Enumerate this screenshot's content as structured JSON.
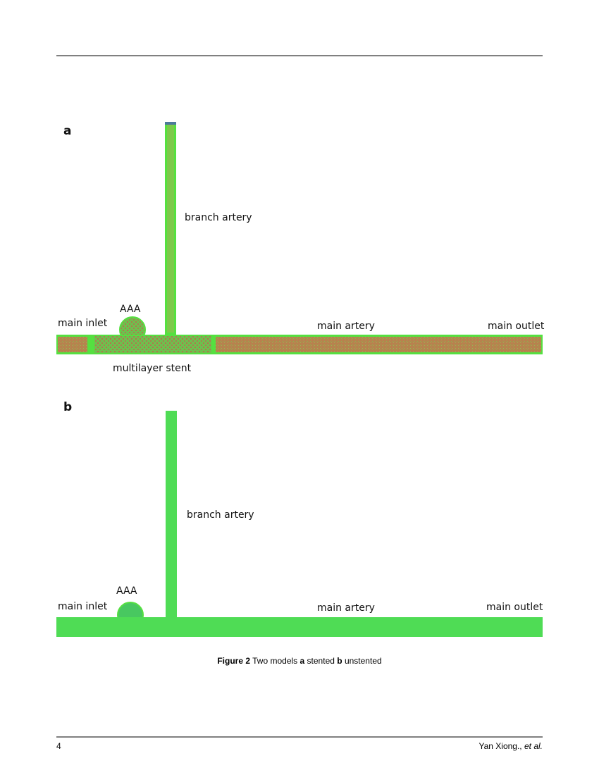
{
  "figure": {
    "panels": [
      {
        "label": "a",
        "annotations": {
          "branch": "branch artery",
          "aneurysm": "AAA",
          "inlet": "main inlet",
          "artery": "main artery",
          "outlet": "main outlet",
          "stent": "multilayer stent"
        }
      },
      {
        "label": "b",
        "annotations": {
          "branch": "branch artery",
          "aneurysm": "AAA",
          "inlet": "main inlet",
          "artery": "main artery",
          "outlet": "main outlet"
        }
      }
    ],
    "caption": {
      "label": "Figure 2",
      "text_1": "Two models",
      "a": "a",
      "text_2": "stented",
      "b": "b",
      "text_3": "unstented"
    }
  },
  "footer": {
    "page": "4",
    "author": "Yan Xiong.,",
    "etal": "et al."
  }
}
